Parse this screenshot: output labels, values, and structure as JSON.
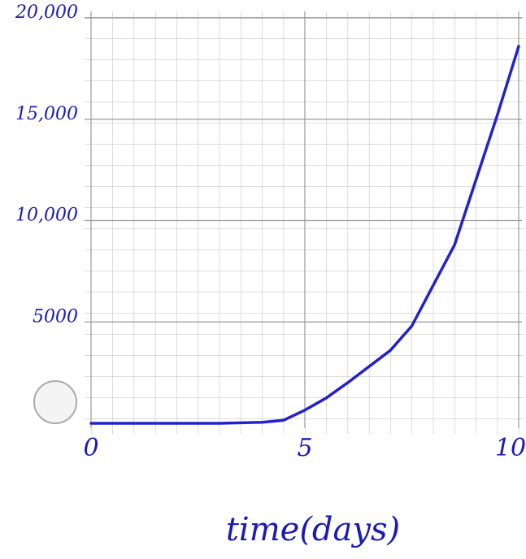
{
  "chart_data": {
    "type": "line",
    "x_label": "time(days)",
    "xlim": [
      0,
      10
    ],
    "xticks": [
      0,
      5,
      10
    ],
    "ylim": [
      0,
      20000
    ],
    "yticks": [
      {
        "value": 5000,
        "label": "5000"
      },
      {
        "value": 10000,
        "label": "10,000"
      },
      {
        "value": 15000,
        "label": "15,000"
      },
      {
        "value": 20000,
        "label": "20,000"
      }
    ],
    "grid": true,
    "series": [
      {
        "color": "#2222cc",
        "x": [
          0,
          1,
          2,
          3,
          4,
          4.5,
          5,
          5.5,
          6,
          7,
          7.5,
          8,
          8.5,
          9,
          9.5,
          10
        ],
        "values": [
          0,
          0,
          0,
          0,
          50,
          150,
          650,
          1250,
          2000,
          3600,
          4800,
          6800,
          8800,
          12000,
          15200,
          18600
        ]
      }
    ]
  }
}
